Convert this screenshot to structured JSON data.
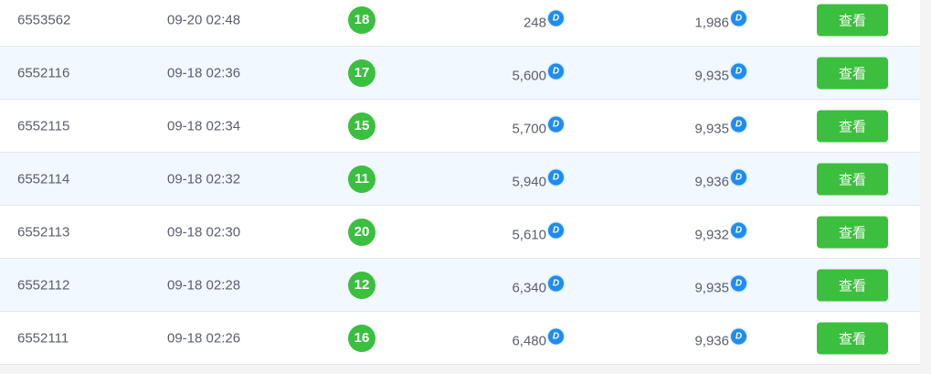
{
  "coin_icon_letter": "D",
  "colors": {
    "badge": "#3bbf3f",
    "button": "#3cbf3e",
    "coin": "#1e8cf0",
    "alt_row": "#f1f8ff"
  },
  "rows": [
    {
      "id": "6553562",
      "time": "09-20 02:48",
      "number": "18",
      "amount": "248",
      "balance": "1,986",
      "action": "查看"
    },
    {
      "id": "6552116",
      "time": "09-18 02:36",
      "number": "17",
      "amount": "5,600",
      "balance": "9,935",
      "action": "查看"
    },
    {
      "id": "6552115",
      "time": "09-18 02:34",
      "number": "15",
      "amount": "5,700",
      "balance": "9,935",
      "action": "查看"
    },
    {
      "id": "6552114",
      "time": "09-18 02:32",
      "number": "11",
      "amount": "5,940",
      "balance": "9,936",
      "action": "查看"
    },
    {
      "id": "6552113",
      "time": "09-18 02:30",
      "number": "20",
      "amount": "5,610",
      "balance": "9,932",
      "action": "查看"
    },
    {
      "id": "6552112",
      "time": "09-18 02:28",
      "number": "12",
      "amount": "6,340",
      "balance": "9,935",
      "action": "查看"
    },
    {
      "id": "6552111",
      "time": "09-18 02:26",
      "number": "16",
      "amount": "6,480",
      "balance": "9,936",
      "action": "查看"
    }
  ]
}
